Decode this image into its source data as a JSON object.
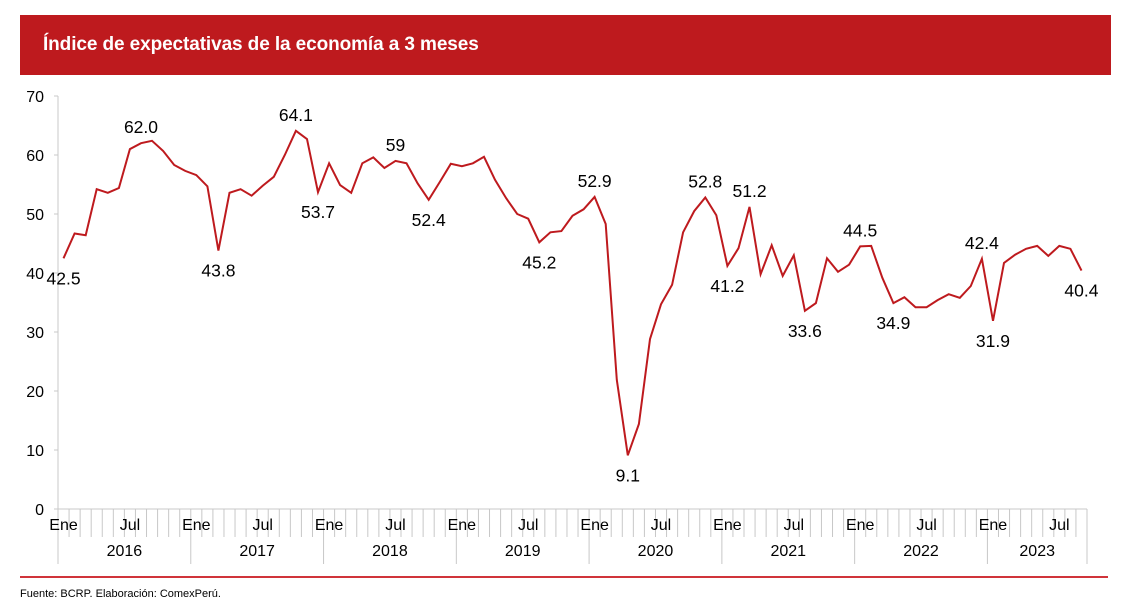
{
  "title": "Índice de expectativas de la economía a 3 meses",
  "source": "Fuente: BCRP. Elaboración: ComexPerú.",
  "colors": {
    "header": "#be1a1e",
    "line": "#be1a1e",
    "footer_rule": "#d0343a",
    "axis": "#c8c8c8"
  },
  "chart_data": {
    "type": "line",
    "title": "Índice de expectativas de la economía a 3 meses",
    "xlabel": "",
    "ylabel": "",
    "ylim": [
      0,
      70
    ],
    "yticks": [
      0,
      10,
      20,
      30,
      40,
      50,
      60,
      70
    ],
    "grid": false,
    "legend": "none",
    "start": "2016-01",
    "x_month_labels": [
      "Ene",
      "Jul"
    ],
    "years": [
      "2016",
      "2017",
      "2018",
      "2019",
      "2020",
      "2021",
      "2022",
      "2023"
    ],
    "series": [
      {
        "name": "Índice de expectativas de la economía a 3 meses",
        "values": [
          42.5,
          46.7,
          46.4,
          54.2,
          53.6,
          54.4,
          61.0,
          62.0,
          62.4,
          60.7,
          58.3,
          57.3,
          56.6,
          54.7,
          43.8,
          53.6,
          54.2,
          53.1,
          54.8,
          56.3,
          60.0,
          64.1,
          62.7,
          53.7,
          58.6,
          54.9,
          53.6,
          58.6,
          59.6,
          57.8,
          59.0,
          58.6,
          55.2,
          52.4,
          55.4,
          58.5,
          58.1,
          58.6,
          59.7,
          55.8,
          52.7,
          50.0,
          49.2,
          45.2,
          46.9,
          47.1,
          49.7,
          50.8,
          52.9,
          48.3,
          21.9,
          9.1,
          14.4,
          28.8,
          34.7,
          38.0,
          46.9,
          50.5,
          52.8,
          49.8,
          41.2,
          44.2,
          51.2,
          39.8,
          44.7,
          39.5,
          43.0,
          33.6,
          34.9,
          42.5,
          40.2,
          41.4,
          44.5,
          44.6,
          39.2,
          34.9,
          35.9,
          34.2,
          34.2,
          35.4,
          36.4,
          35.8,
          37.8,
          42.4,
          31.9,
          41.7,
          43.1,
          44.1,
          44.6,
          42.9,
          44.6,
          44.1,
          40.4
        ]
      }
    ],
    "annotations": [
      {
        "index": 0,
        "text": "42.5",
        "pos": "below"
      },
      {
        "index": 7,
        "text": "62.0",
        "pos": "above"
      },
      {
        "index": 14,
        "text": "43.8",
        "pos": "below"
      },
      {
        "index": 21,
        "text": "64.1",
        "pos": "above"
      },
      {
        "index": 23,
        "text": "53.7",
        "pos": "below"
      },
      {
        "index": 30,
        "text": "59",
        "pos": "above"
      },
      {
        "index": 33,
        "text": "52.4",
        "pos": "below"
      },
      {
        "index": 43,
        "text": "45.2",
        "pos": "below"
      },
      {
        "index": 48,
        "text": "52.9",
        "pos": "above"
      },
      {
        "index": 51,
        "text": "9.1",
        "pos": "below"
      },
      {
        "index": 58,
        "text": "52.8",
        "pos": "above"
      },
      {
        "index": 60,
        "text": "41.2",
        "pos": "below"
      },
      {
        "index": 62,
        "text": "51.2",
        "pos": "above"
      },
      {
        "index": 67,
        "text": "33.6",
        "pos": "below"
      },
      {
        "index": 72,
        "text": "44.5",
        "pos": "above"
      },
      {
        "index": 75,
        "text": "34.9",
        "pos": "below"
      },
      {
        "index": 83,
        "text": "42.4",
        "pos": "above"
      },
      {
        "index": 84,
        "text": "31.9",
        "pos": "below"
      },
      {
        "index": 92,
        "text": "40.4",
        "pos": "below"
      }
    ]
  }
}
